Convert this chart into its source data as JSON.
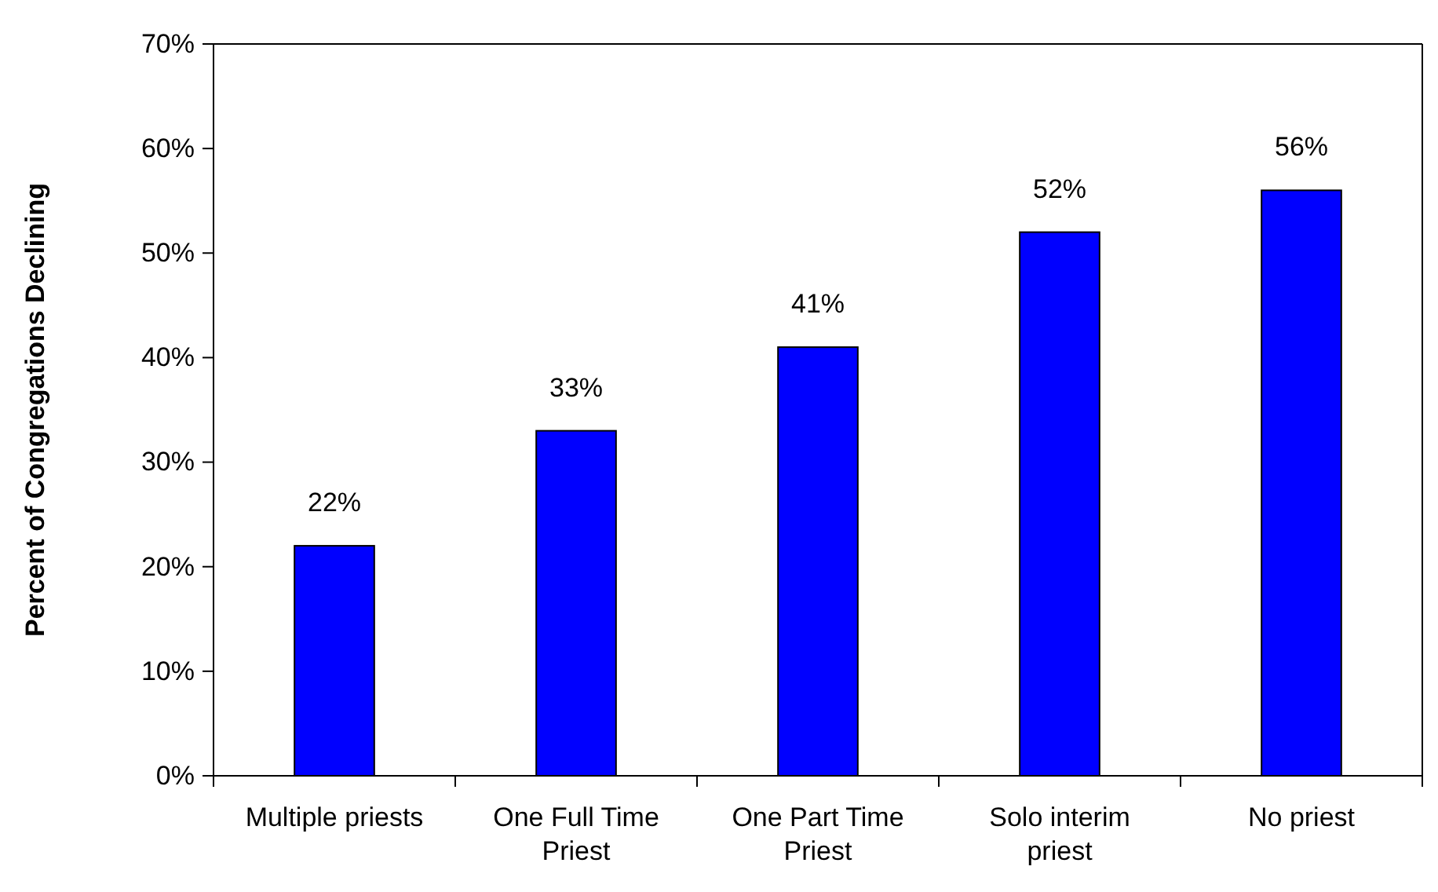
{
  "chart_data": {
    "type": "bar",
    "ylabel": "Percent of Congregations Declining",
    "categories": [
      "Multiple priests",
      "One Full Time Priest",
      "One Part Time Priest",
      "Solo interim priest",
      "No priest"
    ],
    "values": [
      22,
      33,
      41,
      52,
      56
    ],
    "color": "#0000ff",
    "value_labels": [
      "22%",
      "33%",
      "41%",
      "52%",
      "56%"
    ],
    "ylim": [
      0,
      70
    ],
    "yticks": [
      {
        "value": 0,
        "label": "0%"
      },
      {
        "value": 10,
        "label": "10%"
      },
      {
        "value": 20,
        "label": "20%"
      },
      {
        "value": 30,
        "label": "30%"
      },
      {
        "value": 40,
        "label": "40%"
      },
      {
        "value": 50,
        "label": "50%"
      },
      {
        "value": 60,
        "label": "60%"
      },
      {
        "value": 70,
        "label": "70%"
      }
    ],
    "grid": false
  }
}
